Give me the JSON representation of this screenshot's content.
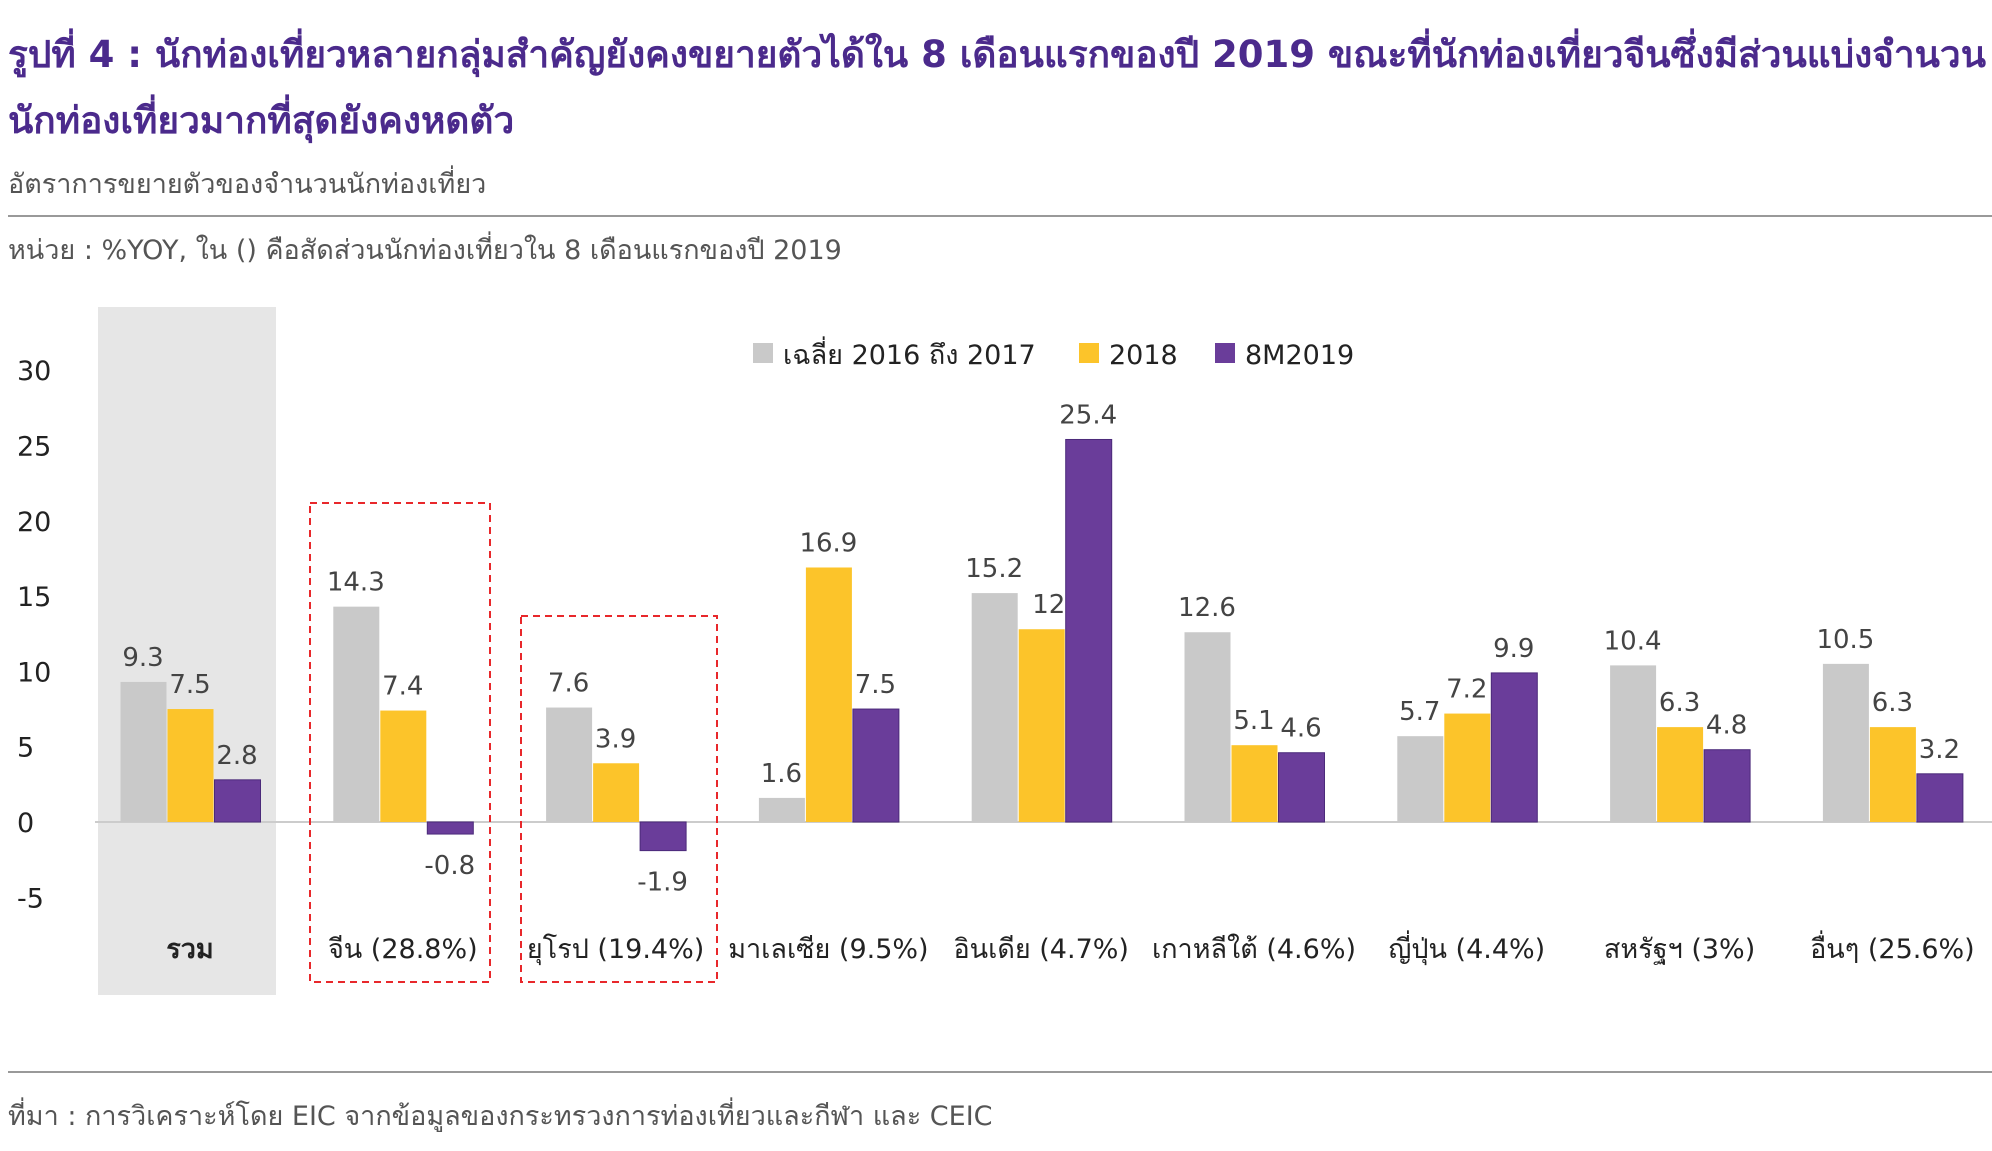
{
  "header": {
    "title": "รูปที่ 4 : นักท่องเที่ยวหลายกลุ่มสำคัญยังคงขยายตัวได้ใน 8 เดือนแรกของปี 2019 ขณะที่นักท่องเที่ยวจีนซึ่งมีส่วนแบ่งจำนวนนักท่องเที่ยวมากที่สุดยังคงหดตัว",
    "subtitle": "อัตราการขยายตัวของจำนวนนักท่องเที่ยว",
    "unit": "หน่วย : %YOY, ใน () คือสัดส่วนนักท่องเที่ยวใน 8 เดือนแรกของปี 2019"
  },
  "footer": {
    "source": "ที่มา : การวิเคราะห์โดย EIC จากข้อมูลของกระทรวงการท่องเที่ยวและกีฬา และ CEIC"
  },
  "chart_data": {
    "type": "bar",
    "categories": [
      "รวม",
      "จีน (28.8%)",
      "ยุโรป (19.4%)",
      "มาเลเซีย (9.5%)",
      "อินเดีย (4.7%)",
      "เกาหลีใต้ (4.6%)",
      "ญี่ปุ่น (4.4%)",
      "สหรัฐฯ (3%)",
      "อื่นๆ (25.6%)"
    ],
    "series": [
      {
        "name": "เฉลี่ย 2016 ถึง 2017",
        "color": "#c9c9c9",
        "values": [
          9.3,
          14.3,
          7.6,
          1.6,
          15.2,
          12.6,
          5.7,
          10.4,
          10.5
        ]
      },
      {
        "name": "2018",
        "color": "#fcc42a",
        "values": [
          7.5,
          7.4,
          3.9,
          16.9,
          12.8,
          5.1,
          7.2,
          6.3,
          6.3
        ]
      },
      {
        "name": "8M2019",
        "color": "#6a3d9a",
        "values": [
          2.8,
          -0.8,
          -1.9,
          7.5,
          25.4,
          4.6,
          9.9,
          4.8,
          3.2
        ]
      }
    ],
    "yticks": [
      "30",
      "25",
      "20",
      "15",
      "10",
      "5",
      "0",
      "-5"
    ],
    "ylim": [
      -5,
      30
    ],
    "grid": false,
    "legend": "top",
    "highlighted_category": "รวม",
    "dashed_outline_categories": [
      "จีน (28.8%)",
      "ยุโรป (19.4%)"
    ],
    "highlight_color": "#e6e6e6",
    "outline_color": "#e8282b"
  }
}
